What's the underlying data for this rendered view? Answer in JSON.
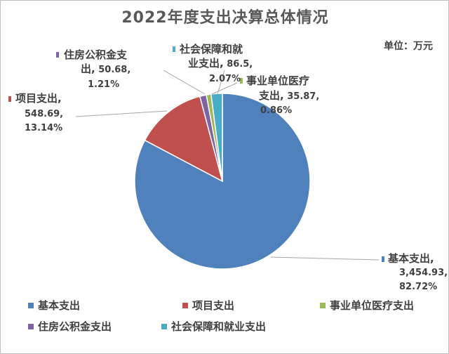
{
  "title": "2022年度支出决算总体情况",
  "unit": "单位：万元",
  "chart_data": {
    "type": "pie",
    "title": "2022年度支出决算总体情况",
    "unit": "万元",
    "slices": [
      {
        "name": "基本支出",
        "value": 3454.93,
        "value_label": "3,454.93",
        "percent": "82.72%",
        "color": "#4f81bd"
      },
      {
        "name": "项目支出",
        "value": 548.69,
        "value_label": "548.69",
        "percent": "13.14%",
        "color": "#c0504d"
      },
      {
        "name": "事业单位医疗支出",
        "value": 35.87,
        "value_label": "35.87",
        "percent": "0.86%",
        "color": "#9bbb59"
      },
      {
        "name": "住房公积金支出",
        "value": 50.68,
        "value_label": "50.68",
        "percent": "1.21%",
        "color": "#8064a2"
      },
      {
        "name": "社会保障和就业支出",
        "value": 86.5,
        "value_label": "86.5",
        "percent": "2.07%",
        "color": "#4bacc6"
      }
    ],
    "legend": [
      "基本支出",
      "项目支出",
      "事业单位医疗支出",
      "住房公积金支出",
      "社会保障和就业支出"
    ],
    "legend_position": "bottom"
  }
}
